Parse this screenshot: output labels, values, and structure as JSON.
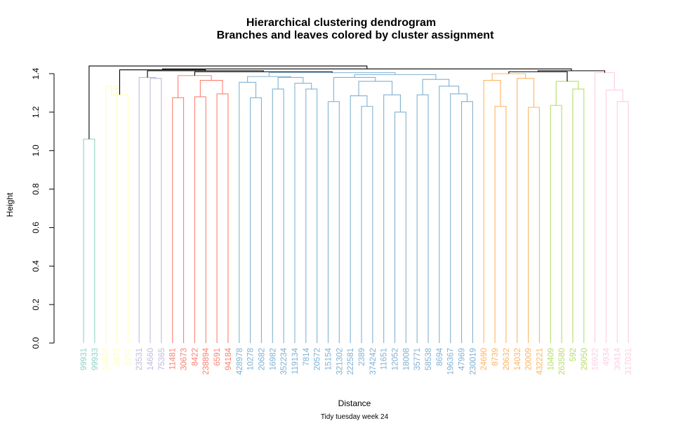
{
  "chart_data": {
    "type": "dendrogram",
    "title": "Hierarchical clustering dendrogram",
    "subtitle": "Branches and leaves colored by cluster assignment",
    "xlabel": "Distance",
    "ylabel": "Height",
    "caption": "Tidy tuesday week 24",
    "ylim": [
      0,
      1.4
    ],
    "yticks": [
      "0.0",
      "0.2",
      "0.4",
      "0.6",
      "0.8",
      "1.0",
      "1.2",
      "1.4"
    ],
    "cluster_colors": [
      "#8DD3C7",
      "#FFFFB3",
      "#BEBADA",
      "#FB8072",
      "#80B1D3",
      "#FDB462",
      "#B3DE69",
      "#FCCDE5"
    ],
    "link_color": "#000000",
    "leaves": [
      {
        "label": "99931",
        "cluster": 0
      },
      {
        "label": "99933",
        "cluster": 0
      },
      {
        "label": "16667",
        "cluster": 1
      },
      {
        "label": "2477",
        "cluster": 1
      },
      {
        "label": "3757",
        "cluster": 1
      },
      {
        "label": "23531",
        "cluster": 2
      },
      {
        "label": "14660",
        "cluster": 2
      },
      {
        "label": "75365",
        "cluster": 2
      },
      {
        "label": "11481",
        "cluster": 3
      },
      {
        "label": "30673",
        "cluster": 3
      },
      {
        "label": "8422",
        "cluster": 3
      },
      {
        "label": "238894",
        "cluster": 3
      },
      {
        "label": "6591",
        "cluster": 3
      },
      {
        "label": "94184",
        "cluster": 3
      },
      {
        "label": "428978",
        "cluster": 4
      },
      {
        "label": "10278",
        "cluster": 4
      },
      {
        "label": "20682",
        "cluster": 4
      },
      {
        "label": "16982",
        "cluster": 4
      },
      {
        "label": "352234",
        "cluster": 4
      },
      {
        "label": "119134",
        "cluster": 4
      },
      {
        "label": "7814",
        "cluster": 4
      },
      {
        "label": "20572",
        "cluster": 4
      },
      {
        "label": "15154",
        "cluster": 4
      },
      {
        "label": "321302",
        "cluster": 4
      },
      {
        "label": "222581",
        "cluster": 4
      },
      {
        "label": "2389",
        "cluster": 4
      },
      {
        "label": "374242",
        "cluster": 4
      },
      {
        "label": "11651",
        "cluster": 4
      },
      {
        "label": "12052",
        "cluster": 4
      },
      {
        "label": "18008",
        "cluster": 4
      },
      {
        "label": "35771",
        "cluster": 4
      },
      {
        "label": "58538",
        "cluster": 4
      },
      {
        "label": "8694",
        "cluster": 4
      },
      {
        "label": "196367",
        "cluster": 4
      },
      {
        "label": "47969",
        "cluster": 4
      },
      {
        "label": "230019",
        "cluster": 4
      },
      {
        "label": "24690",
        "cluster": 5
      },
      {
        "label": "8739",
        "cluster": 5
      },
      {
        "label": "20632",
        "cluster": 5
      },
      {
        "label": "14032",
        "cluster": 5
      },
      {
        "label": "20009",
        "cluster": 5
      },
      {
        "label": "432221",
        "cluster": 5
      },
      {
        "label": "10409",
        "cluster": 6
      },
      {
        "label": "263580",
        "cluster": 6
      },
      {
        "label": "592",
        "cluster": 6
      },
      {
        "label": "29050",
        "cluster": 6
      },
      {
        "label": "16922",
        "cluster": 7
      },
      {
        "label": "4934",
        "cluster": 7
      },
      {
        "label": "30414",
        "cluster": 7
      },
      {
        "label": "317031",
        "cluster": 7
      }
    ],
    "merges": [
      {
        "a": "L0",
        "b": "L1",
        "h": 1.06
      },
      {
        "a": "L2",
        "b": "L3",
        "h": 1.335
      },
      {
        "a": "M1",
        "b": "L4",
        "h": 1.29
      },
      {
        "a": "L6",
        "b": "L7",
        "h": 1.375
      },
      {
        "a": "L5",
        "b": "M3",
        "h": 1.38
      },
      {
        "a": "L8",
        "b": "L9",
        "h": 1.275
      },
      {
        "a": "L10",
        "b": "L11",
        "h": 1.28
      },
      {
        "a": "L12",
        "b": "L13",
        "h": 1.295
      },
      {
        "a": "M6",
        "b": "M7",
        "h": 1.365
      },
      {
        "a": "M5",
        "b": "M8",
        "h": 1.39
      },
      {
        "a": "L15",
        "b": "L16",
        "h": 1.275
      },
      {
        "a": "L14",
        "b": "M10",
        "h": 1.355
      },
      {
        "a": "L17",
        "b": "L18",
        "h": 1.32
      },
      {
        "a": "L20",
        "b": "L21",
        "h": 1.32
      },
      {
        "a": "L19",
        "b": "M13",
        "h": 1.35
      },
      {
        "a": "M12",
        "b": "M14",
        "h": 1.38
      },
      {
        "a": "M11",
        "b": "M15",
        "h": 1.385
      },
      {
        "a": "L22",
        "b": "L23",
        "h": 1.255
      },
      {
        "a": "L25",
        "b": "L26",
        "h": 1.23
      },
      {
        "a": "L24",
        "b": "M18",
        "h": 1.285
      },
      {
        "a": "L28",
        "b": "L29",
        "h": 1.2
      },
      {
        "a": "L27",
        "b": "M20",
        "h": 1.29
      },
      {
        "a": "M19",
        "b": "M21",
        "h": 1.36
      },
      {
        "a": "M17",
        "b": "M22",
        "h": 1.38
      },
      {
        "a": "L30",
        "b": "L31",
        "h": 1.29
      },
      {
        "a": "L34",
        "b": "L35",
        "h": 1.255
      },
      {
        "a": "L33",
        "b": "M25",
        "h": 1.295
      },
      {
        "a": "L32",
        "b": "M26",
        "h": 1.335
      },
      {
        "a": "M24",
        "b": "M27",
        "h": 1.37
      },
      {
        "a": "M23",
        "b": "M28",
        "h": 1.395
      },
      {
        "a": "M16",
        "b": "M29",
        "h": 1.405
      },
      {
        "a": "L37",
        "b": "L38",
        "h": 1.23
      },
      {
        "a": "L36",
        "b": "M31",
        "h": 1.365
      },
      {
        "a": "L40",
        "b": "L41",
        "h": 1.225
      },
      {
        "a": "L39",
        "b": "M33",
        "h": 1.375
      },
      {
        "a": "M32",
        "b": "M34",
        "h": 1.4
      },
      {
        "a": "L42",
        "b": "L43",
        "h": 1.235
      },
      {
        "a": "L44",
        "b": "L45",
        "h": 1.32
      },
      {
        "a": "M36",
        "b": "M37",
        "h": 1.36
      },
      {
        "a": "L48",
        "b": "L49",
        "h": 1.255
      },
      {
        "a": "L47",
        "b": "M39",
        "h": 1.315
      },
      {
        "a": "L46",
        "b": "M40",
        "h": 1.405
      },
      {
        "a": "M9",
        "b": "M30",
        "h": 1.41
      },
      {
        "a": "M4",
        "b": "M42",
        "h": 1.415
      },
      {
        "a": "M35",
        "b": "M38",
        "h": 1.41
      },
      {
        "a": "M2",
        "b": "M43",
        "h": 1.42
      },
      {
        "a": "M44",
        "b": "M41",
        "h": 1.415
      },
      {
        "a": "M45",
        "b": "M46",
        "h": 1.425
      },
      {
        "a": "M0",
        "b": "M47",
        "h": 1.44
      }
    ]
  }
}
